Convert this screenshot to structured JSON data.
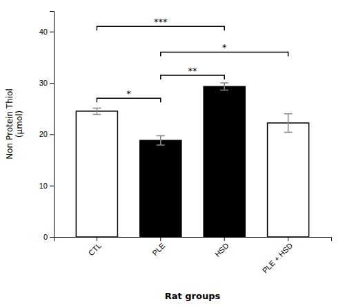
{
  "chart_data": {
    "type": "bar",
    "categories": [
      "CTL",
      "PLE",
      "HSD",
      "PLE + HSD"
    ],
    "values": [
      24.5,
      18.8,
      29.3,
      22.2
    ],
    "errors": [
      0.6,
      0.9,
      0.7,
      1.8
    ],
    "colors": [
      "white",
      "black",
      "black",
      "white"
    ],
    "xlabel": "Rat groups",
    "ylabel": "Non Protein Thiol\n(μmol)",
    "ylim": [
      0,
      44
    ],
    "yticks": [
      0,
      10,
      20,
      30,
      40
    ],
    "grid": false,
    "annotations": [
      {
        "from": "CTL",
        "to": "PLE",
        "y": 27.0,
        "label": "*"
      },
      {
        "from": "PLE",
        "to": "HSD",
        "y": 31.5,
        "label": "**"
      },
      {
        "from": "PLE",
        "to": "PLE + HSD",
        "y": 36.0,
        "label": "*"
      },
      {
        "from": "CTL",
        "to": "HSD",
        "y": 41.0,
        "label": "***"
      }
    ]
  }
}
